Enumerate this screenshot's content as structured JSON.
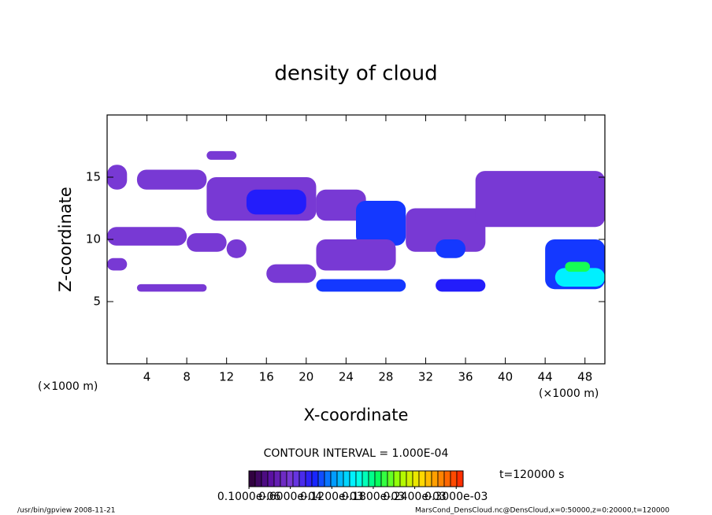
{
  "chart_data": {
    "type": "contour",
    "title": "density of cloud",
    "x_label": "X-coordinate",
    "y_label": "Z-coordinate",
    "x_unit": "(×1000 m)",
    "xlim": [
      0,
      50
    ],
    "ylim": [
      0,
      20
    ],
    "xticks": [
      4,
      8,
      12,
      16,
      20,
      24,
      28,
      32,
      36,
      40,
      44,
      48
    ],
    "yticks": [
      5,
      10,
      15
    ],
    "contour_interval": "CONTOUR INTERVAL = 1.000E-04",
    "time_label": "t=120000 s",
    "colormap": [
      "#2a0030",
      "#5a10a0",
      "#7a3cd8",
      "#1a1aff",
      "#00a0ff",
      "#00ffff",
      "#00ff60",
      "#a0ff00",
      "#ffe000",
      "#ff8000",
      "#ff2000"
    ],
    "clim": [
      0,
      0.00031
    ],
    "cticks": [
      {
        "value": 1e-07,
        "label": "0.1000e-06"
      },
      {
        "value": 6e-05,
        "label": "0.6000e-04"
      },
      {
        "value": 0.00012,
        "label": "0.1200e-03"
      },
      {
        "value": 0.00018,
        "label": "0.1800e-03"
      },
      {
        "value": 0.00024,
        "label": "0.2400e-03"
      },
      {
        "value": 0.0003,
        "label": "0.3000e-03"
      }
    ],
    "cells": [
      {
        "x": 0,
        "z": 14,
        "w": 2,
        "h": 2,
        "value": 6e-05
      },
      {
        "x": 3,
        "z": 14,
        "w": 7,
        "h": 1.6,
        "value": 6e-05
      },
      {
        "x": 10,
        "z": 16.4,
        "w": 3,
        "h": 0.7,
        "value": 6e-05
      },
      {
        "x": 10,
        "z": 11.5,
        "w": 11,
        "h": 3.5,
        "value": 6e-05
      },
      {
        "x": 14,
        "z": 12,
        "w": 6,
        "h": 2,
        "value": 9e-05
      },
      {
        "x": 21,
        "z": 11.5,
        "w": 5,
        "h": 2.5,
        "value": 6e-05
      },
      {
        "x": 25,
        "z": 9.5,
        "w": 5,
        "h": 3.6,
        "value": 0.0001
      },
      {
        "x": 30,
        "z": 9,
        "w": 8,
        "h": 3.5,
        "value": 6e-05
      },
      {
        "x": 33,
        "z": 8.5,
        "w": 3,
        "h": 1.5,
        "value": 0.0001
      },
      {
        "x": 37,
        "z": 11,
        "w": 13,
        "h": 4.5,
        "value": 6e-05
      },
      {
        "x": 0,
        "z": 9.5,
        "w": 8,
        "h": 1.5,
        "value": 6e-05
      },
      {
        "x": 8,
        "z": 9,
        "w": 4,
        "h": 1.5,
        "value": 6e-05
      },
      {
        "x": 0,
        "z": 7.5,
        "w": 2,
        "h": 1,
        "value": 6e-05
      },
      {
        "x": 12,
        "z": 8.5,
        "w": 2,
        "h": 1.5,
        "value": 6e-05
      },
      {
        "x": 16,
        "z": 6.5,
        "w": 5,
        "h": 1.5,
        "value": 6e-05
      },
      {
        "x": 21,
        "z": 7.5,
        "w": 8,
        "h": 2.5,
        "value": 6e-05
      },
      {
        "x": 21,
        "z": 5.8,
        "w": 9,
        "h": 1,
        "value": 0.0001
      },
      {
        "x": 33,
        "z": 5.8,
        "w": 5,
        "h": 1,
        "value": 9e-05
      },
      {
        "x": 3,
        "z": 5.8,
        "w": 7,
        "h": 0.6,
        "value": 6e-05
      },
      {
        "x": 44,
        "z": 6,
        "w": 6,
        "h": 4,
        "value": 0.0001
      },
      {
        "x": 45,
        "z": 6.2,
        "w": 5,
        "h": 1.5,
        "value": 0.00015
      },
      {
        "x": 46,
        "z": 7.4,
        "w": 2.5,
        "h": 0.8,
        "value": 0.00019
      }
    ],
    "footer_left": "/usr/bin/gpview  2008-11-21",
    "footer_right": "MarsCond_DensCloud.nc@DensCloud,x=0:50000,z=0:20000,t=120000"
  }
}
